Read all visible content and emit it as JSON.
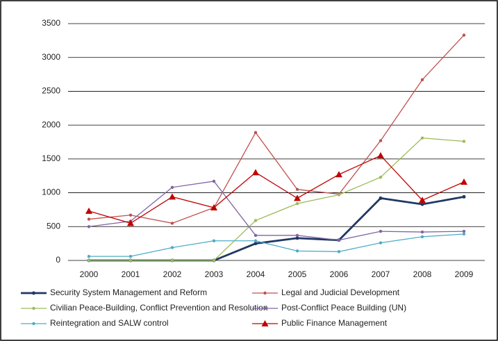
{
  "chart_data": {
    "type": "line",
    "categories": [
      "2000",
      "2001",
      "2002",
      "2003",
      "2004",
      "2005",
      "2006",
      "2007",
      "2008",
      "2009"
    ],
    "ylim": [
      0,
      3500
    ],
    "yticks": [
      0,
      500,
      1000,
      1500,
      2000,
      2500,
      3000,
      3500
    ],
    "grid": true,
    "legend": "bottom",
    "series": [
      {
        "name": "Security System Management and Reform",
        "color": "#1f3864",
        "values": [
          0,
          0,
          0,
          0,
          250,
          330,
          300,
          920,
          830,
          940
        ]
      },
      {
        "name": "Legal and Judicial Development",
        "color": "#c0504d",
        "values": [
          610,
          670,
          550,
          780,
          1890,
          1050,
          980,
          1770,
          2670,
          3330
        ]
      },
      {
        "name": "Civilian Peace-Building, Conflict Prevention and Resolution",
        "color": "#9bbb59",
        "values": [
          0,
          0,
          0,
          0,
          590,
          840,
          970,
          1230,
          1810,
          1760
        ]
      },
      {
        "name": "Post-Conflict Peace Building (UN)",
        "color": "#8064a2",
        "values": [
          500,
          580,
          1080,
          1170,
          370,
          370,
          300,
          430,
          420,
          430
        ]
      },
      {
        "name": "Reintegration and SALW control",
        "color": "#4bacc6",
        "values": [
          60,
          60,
          190,
          290,
          290,
          140,
          130,
          260,
          350,
          390
        ]
      },
      {
        "name": "Public Finance Management",
        "color": "#c00000",
        "values": [
          730,
          550,
          940,
          780,
          1300,
          920,
          1270,
          1550,
          890,
          1160
        ]
      }
    ]
  }
}
